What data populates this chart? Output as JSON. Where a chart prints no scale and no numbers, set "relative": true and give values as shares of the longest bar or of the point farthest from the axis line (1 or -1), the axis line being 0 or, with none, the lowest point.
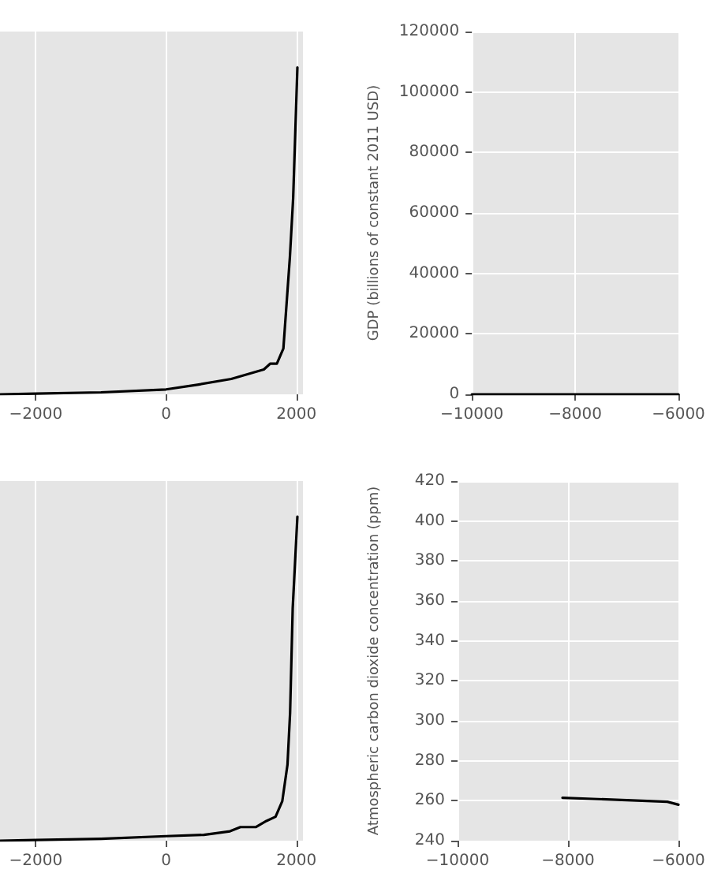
{
  "chart_data": [
    {
      "type": "line",
      "relative": true,
      "x": [
        -2550,
        -2000,
        -1000,
        0,
        500,
        1000,
        1500,
        1600,
        1700,
        1800,
        1850,
        1900,
        1950,
        2015
      ],
      "series": [
        {
          "color": "#000000",
          "values": [
            0,
            0.002,
            0.006,
            0.015,
            0.03,
            0.047,
            0.076,
            0.094,
            0.094,
            0.14,
            0.28,
            0.42,
            0.6,
            1
          ]
        }
      ],
      "xlim": [
        -2550,
        2100
      ],
      "xticks": [
        -2000,
        0,
        2000
      ],
      "grid": true,
      "marker": "none",
      "line_style": "solid"
    },
    {
      "type": "line",
      "ylabel": "GDP (billions of constant 2011 USD)",
      "x": [
        -10000,
        -6000
      ],
      "series": [
        {
          "color": "#000000",
          "values": [
            0,
            0
          ]
        }
      ],
      "xlim": [
        -10000,
        -6000
      ],
      "xticks": [
        -10000,
        -8000,
        -6000
      ],
      "ylim": [
        0,
        120000
      ],
      "yticks": [
        0,
        20000,
        40000,
        60000,
        80000,
        100000,
        120000
      ],
      "grid": true,
      "marker": "none",
      "line_style": "solid"
    },
    {
      "type": "line",
      "relative": true,
      "x": [
        -2550,
        -2000,
        -1000,
        0,
        578,
        980,
        1140,
        1380,
        1540,
        1680,
        1783,
        1863,
        1903,
        1943,
        2015
      ],
      "series": [
        {
          "color": "#000000",
          "values": [
            0,
            0.002,
            0.006,
            0.014,
            0.018,
            0.029,
            0.042,
            0.042,
            0.061,
            0.074,
            0.122,
            0.235,
            0.395,
            0.717,
            1
          ]
        }
      ],
      "xlim": [
        -2550,
        2100
      ],
      "xticks": [
        -2000,
        0,
        2000
      ],
      "grid": true,
      "marker": "none",
      "line_style": "solid"
    },
    {
      "type": "line",
      "ylabel": "Atmospheric carbon dioxide concentration (ppm)",
      "x": [
        -8100,
        -6200,
        -6000
      ],
      "series": [
        {
          "color": "#000000",
          "values": [
            261.5,
            259.5,
            258
          ]
        }
      ],
      "xlim": [
        -10000,
        -6000
      ],
      "xticks": [
        -10000,
        -8000,
        -6000
      ],
      "ylim": [
        240,
        420
      ],
      "yticks": [
        240,
        260,
        280,
        300,
        320,
        340,
        360,
        380,
        400,
        420
      ],
      "grid": true,
      "marker": "none",
      "line_style": "solid"
    }
  ]
}
